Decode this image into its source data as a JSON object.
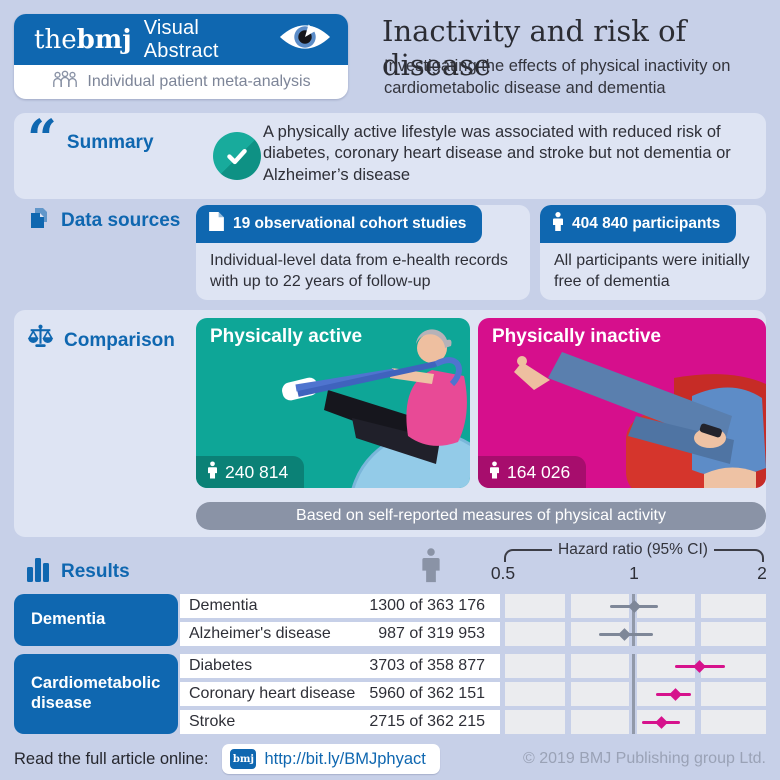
{
  "colors": {
    "accent_blue": "#0f67b0",
    "teal": "#0ea697",
    "teal_dark": "#0b8176",
    "magenta": "#d60f8c",
    "magenta_dark": "#a70d6d",
    "banner_gray": "#8a93a6",
    "marker_gray": "#7e8798",
    "page_bg": "#c7d0e8",
    "panel_bg": "#dee4f3"
  },
  "header": {
    "logo_the": "the",
    "logo_bmj": "bmj",
    "logo_label": "Visual Abstract",
    "badge": "Individual patient meta-analysis",
    "title": "Inactivity and risk of disease",
    "subtitle": "Investigating the effects of physical inactivity on cardiometabolic disease and dementia"
  },
  "summary": {
    "heading": "Summary",
    "text": "A physically active lifestyle was associated with reduced risk of diabetes, coronary heart disease and stroke but not dementia or Alzheimer’s disease"
  },
  "data_sources": {
    "heading": "Data sources",
    "cards": [
      {
        "header": "19 observational cohort studies",
        "body": "Individual-level data from e-health records with up to 22 years of follow-up"
      },
      {
        "header": "404 840 participants",
        "body": "All participants were initially free of dementia"
      }
    ]
  },
  "comparison": {
    "heading": "Comparison",
    "active_label": "Physically active",
    "active_count": "240 814",
    "inactive_label": "Physically inactive",
    "inactive_count": "164 026",
    "banner": "Based on self-reported measures of physical activity"
  },
  "results": {
    "heading": "Results",
    "axis_title": "Hazard ratio (95% CI)",
    "axis_ticks": [
      "0.5",
      "1",
      "2"
    ]
  },
  "chart_data": {
    "type": "forest",
    "axis": {
      "scale": "log2",
      "min": 0.5,
      "max": 2,
      "ticks": [
        0.5,
        1,
        2
      ],
      "reference": 1,
      "title": "Hazard ratio (95% CI)"
    },
    "groups": [
      {
        "label": "Dementia",
        "color": "#7e8798",
        "rows": [
          {
            "outcome": "Dementia",
            "events": "1300 of 363 176",
            "hr": 1.0,
            "ci_low": 0.88,
            "ci_high": 1.13
          },
          {
            "outcome": "Alzheimer's disease",
            "events": "987 of 319 953",
            "hr": 0.95,
            "ci_low": 0.83,
            "ci_high": 1.1
          }
        ]
      },
      {
        "label": "Cardiometabolic disease",
        "color": "#d6128c",
        "rows": [
          {
            "outcome": "Diabetes",
            "events": "3703 of 358 877",
            "hr": 1.41,
            "ci_low": 1.24,
            "ci_high": 1.61
          },
          {
            "outcome": "Coronary heart disease",
            "events": "5960 of 362 151",
            "hr": 1.24,
            "ci_low": 1.12,
            "ci_high": 1.35
          },
          {
            "outcome": "Stroke",
            "events": "2715 of 362 215",
            "hr": 1.15,
            "ci_low": 1.04,
            "ci_high": 1.27
          }
        ]
      }
    ]
  },
  "footer": {
    "prompt": "Read the full article online:",
    "chip": "bmj",
    "link": "http://bit.ly/BMJphyact",
    "copyright": "© 2019 BMJ Publishing group Ltd."
  }
}
